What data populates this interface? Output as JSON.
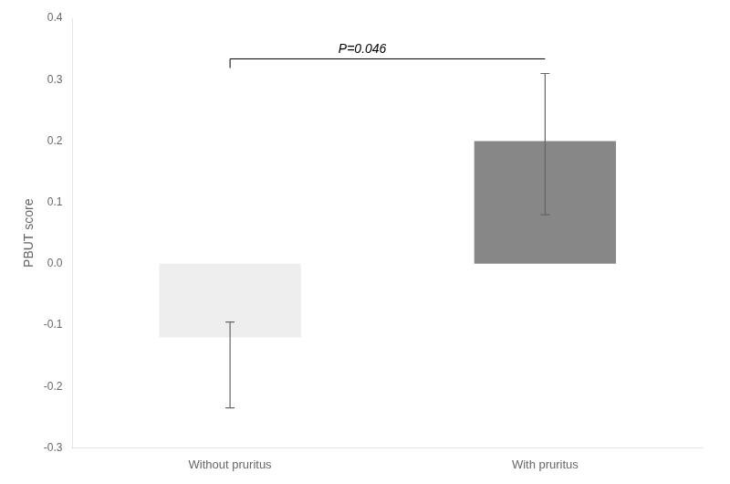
{
  "chart_data": {
    "type": "bar",
    "categories": [
      "Without pruritus",
      "With pruritus"
    ],
    "values": [
      -0.12,
      0.2
    ],
    "errors_upper": [
      0.025,
      0.11
    ],
    "errors_lower": [
      0.115,
      0.12
    ],
    "colors": [
      "#eeeeee",
      "#878787"
    ],
    "ylabel": "PBUT score",
    "ylim": [
      -0.3,
      0.4
    ],
    "yticks": [
      -0.3,
      -0.2,
      -0.1,
      {
        "value": 0.0,
        "label": "0.0"
      },
      0.1,
      0.2,
      0.3,
      0.4
    ],
    "annotation": "P=0.046",
    "grid": false
  }
}
